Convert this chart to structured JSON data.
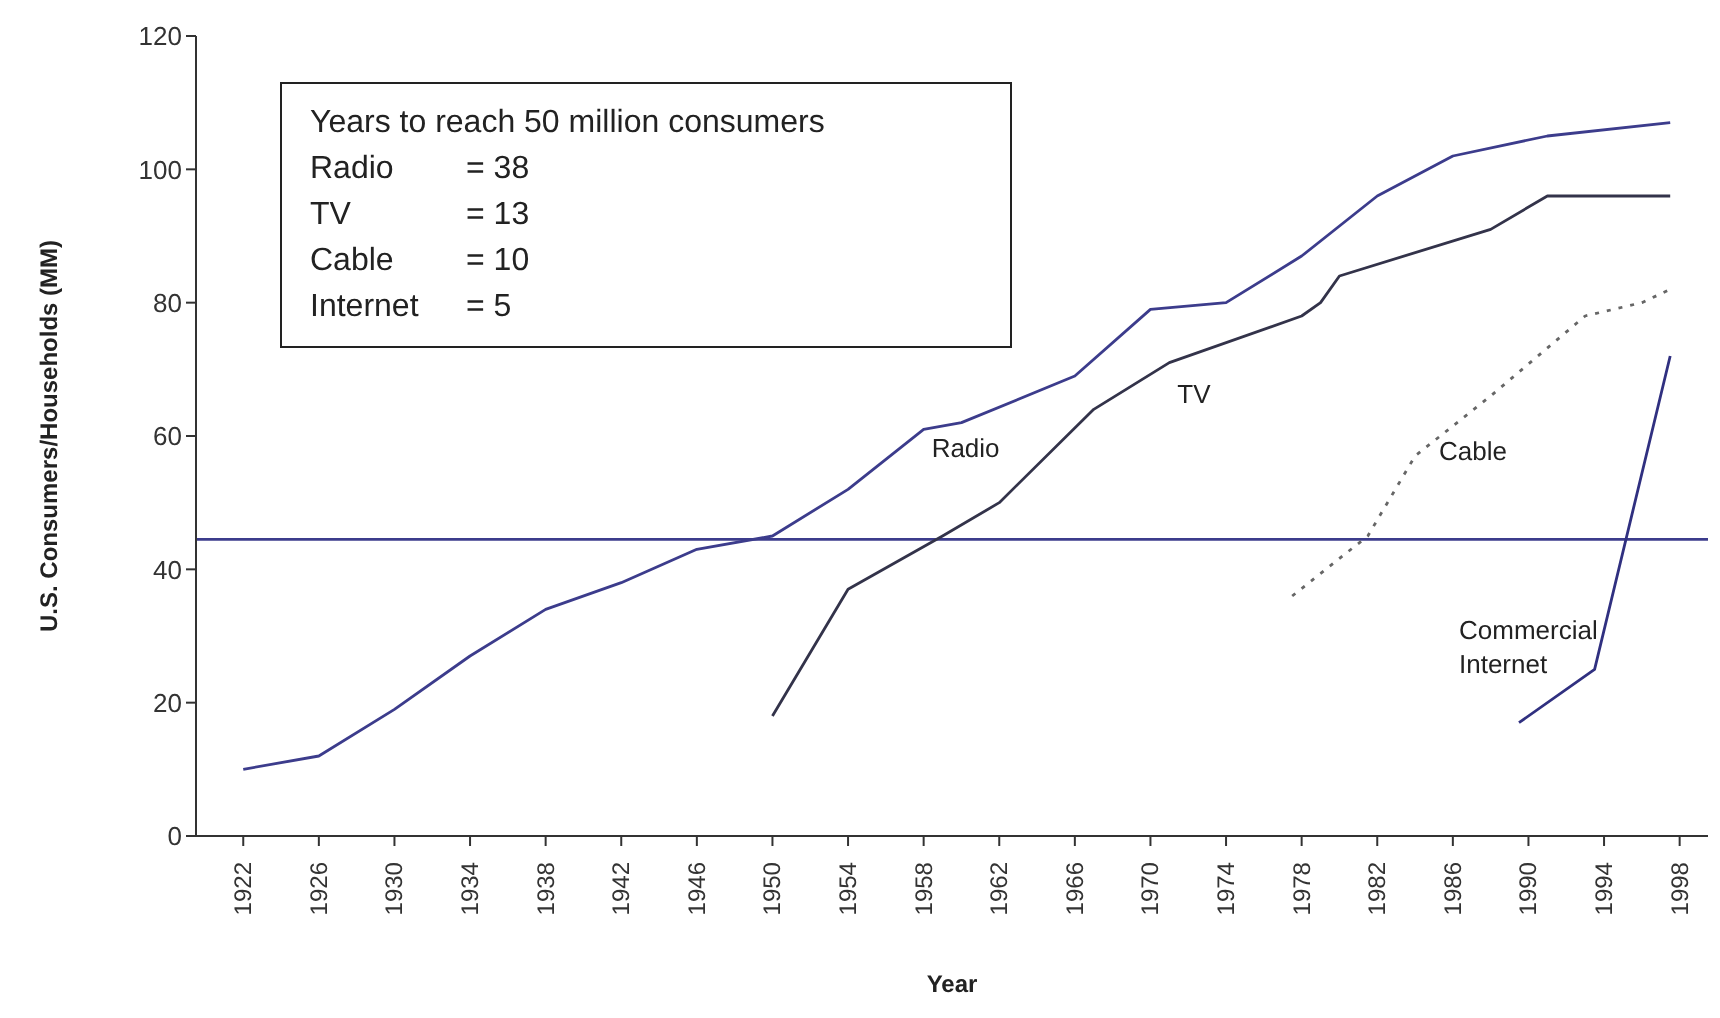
{
  "chart_data": {
    "type": "line",
    "xlabel": "Year",
    "ylabel": "U.S. Consumers/Households (MM)",
    "xlim": [
      1919.5,
      1999.5
    ],
    "xticks": [
      1922,
      1926,
      1930,
      1934,
      1938,
      1942,
      1946,
      1950,
      1954,
      1958,
      1962,
      1966,
      1970,
      1974,
      1978,
      1982,
      1986,
      1990,
      1994,
      1998
    ],
    "ylim": [
      0,
      120
    ],
    "yticks": [
      0,
      20,
      40,
      60,
      80,
      100,
      120
    ],
    "marker": "none",
    "series": [
      {
        "name": "Radio",
        "color": "#3c3c8c",
        "line_style": "solid",
        "x": [
          1922,
          1926,
          1930,
          1934,
          1938,
          1942,
          1946,
          1950,
          1954,
          1958,
          1960,
          1966,
          1970,
          1974,
          1978,
          1982,
          1986,
          1991,
          1997.5
        ],
        "values": [
          10,
          12,
          19,
          27,
          34,
          38,
          43,
          45,
          52,
          61,
          62,
          69,
          79,
          80,
          87,
          96,
          102,
          105,
          107
        ]
      },
      {
        "name": "TV",
        "color": "#33334a",
        "line_style": "solid",
        "x": [
          1950,
          1954,
          1959,
          1962,
          1967,
          1971,
          1978,
          1979,
          1980,
          1988,
          1991,
          1992.5,
          1997.5
        ],
        "values": [
          18,
          37,
          45,
          50,
          64,
          71,
          78,
          80,
          84,
          91,
          96,
          96,
          96
        ]
      },
      {
        "name": "Cable",
        "color": "#666666",
        "line_style": "dotted",
        "x": [
          1977.5,
          1981.5,
          1984,
          1988,
          1993,
          1996,
          1997.5
        ],
        "values": [
          36,
          45,
          57,
          66,
          78,
          80,
          82
        ]
      },
      {
        "name": "Commercial Internet",
        "color": "#303080",
        "line_style": "solid",
        "x": [
          1989.5,
          1993.5,
          1997.5
        ],
        "values": [
          17,
          25,
          72
        ]
      }
    ],
    "ref_lines": [
      {
        "axis": "y",
        "value": 44.5,
        "color": "#3c3c8c"
      }
    ],
    "annotations": [
      "Years to reach 50 million consumers",
      "Radio = 38",
      "TV = 13",
      "Cable = 10",
      "Internet = 5"
    ]
  }
}
